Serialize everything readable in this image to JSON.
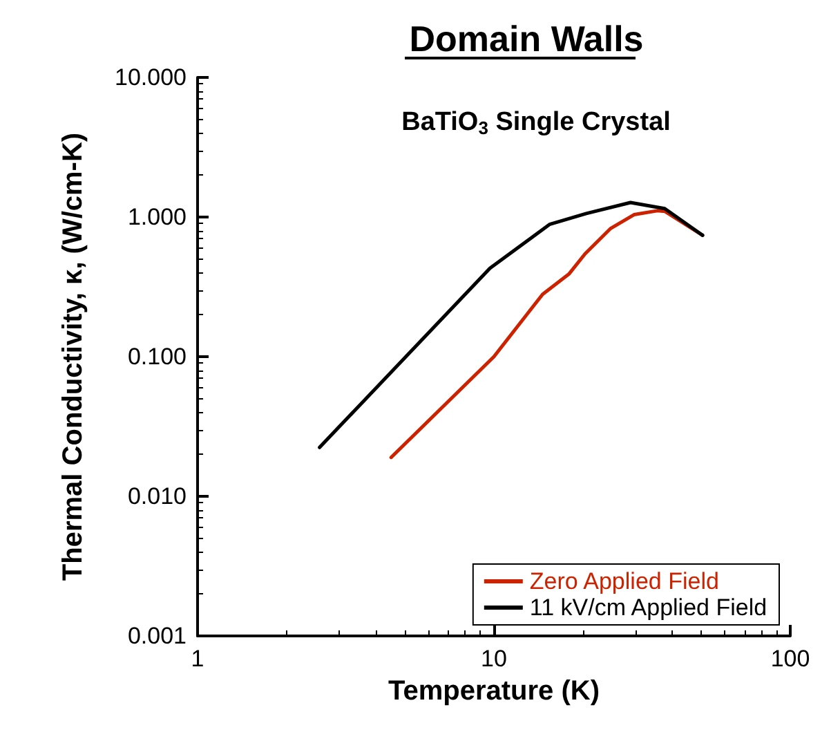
{
  "chart_data": {
    "type": "line",
    "title": "Domain Walls",
    "xlabel": "Temperature (K)",
    "ylabel": "Thermal Conductivity, κ, (W/cm-K)",
    "annotations": [
      "BaTiO$_{3}$ Single Crystal"
    ],
    "log": "xy",
    "xlim": [
      1,
      100
    ],
    "xticks": [
      1,
      10,
      100
    ],
    "ylim": [
      0.001,
      10
    ],
    "yticks": [
      {
        "value": 0.001,
        "label": "0.001"
      },
      {
        "value": 0.01,
        "label": "0.010"
      },
      {
        "value": 0.1,
        "label": "0.100"
      },
      {
        "value": 1,
        "label": "1.000"
      },
      {
        "value": 10,
        "label": "10.000"
      }
    ],
    "grid": false,
    "legend": "bottom right",
    "marker": "none",
    "line_style": "solid",
    "series": [
      {
        "name": "Zero Applied Field",
        "color": "#cc2200",
        "x": [
          4.5,
          10,
          14.6,
          17.9,
          20.3,
          24.8,
          29.7,
          35.6,
          37.7,
          50.6
        ],
        "values": [
          0.019,
          0.1,
          0.28,
          0.39,
          0.545,
          0.83,
          1.04,
          1.11,
          1.1,
          0.74
        ]
      },
      {
        "name": "11 kV/cm Applied Field",
        "color": "#000000",
        "x": [
          2.58,
          9.7,
          15.4,
          20.5,
          28.9,
          37.7,
          50.6
        ],
        "values": [
          0.0224,
          0.43,
          0.885,
          1.06,
          1.27,
          1.15,
          0.74
        ]
      }
    ]
  }
}
